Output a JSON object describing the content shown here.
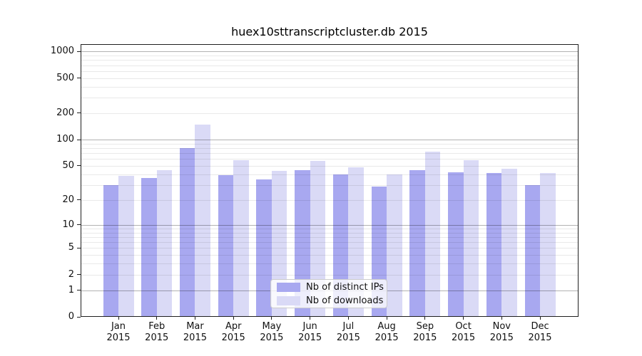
{
  "title": "huex10sttranscriptcluster.db 2015",
  "legend": {
    "position": "lower center",
    "items": [
      {
        "label": "Nb of distinct IPs",
        "color": "#a8a8f0"
      },
      {
        "label": "Nb of downloads",
        "color": "#dadaf6"
      }
    ]
  },
  "chart_data": {
    "type": "bar",
    "title": "huex10sttranscriptcluster.db 2015",
    "categories": [
      "Jan 2015",
      "Feb 2015",
      "Mar 2015",
      "Apr 2015",
      "May 2015",
      "Jun 2015",
      "Jul 2015",
      "Aug 2015",
      "Sep 2015",
      "Oct 2015",
      "Nov 2015",
      "Dec 2015"
    ],
    "series": [
      {
        "name": "Nb of distinct IPs",
        "color": "#a8a8f0",
        "values": [
          30,
          36,
          80,
          39,
          35,
          45,
          40,
          29,
          45,
          42,
          41,
          30
        ]
      },
      {
        "name": "Nb of downloads",
        "color": "#dadaf6",
        "values": [
          38,
          45,
          148,
          58,
          44,
          57,
          48,
          40,
          73,
          58,
          46,
          41
        ]
      }
    ],
    "xlabel": "",
    "ylabel": "",
    "y_ticks": [
      0,
      1,
      2,
      5,
      10,
      20,
      50,
      100,
      200,
      500,
      1000
    ],
    "y_scale": "log10(value+1)",
    "ylim": [
      0,
      1200
    ],
    "grid": {
      "horizontal": true,
      "minor_log_lines": true
    },
    "legend_position": "lower center"
  }
}
